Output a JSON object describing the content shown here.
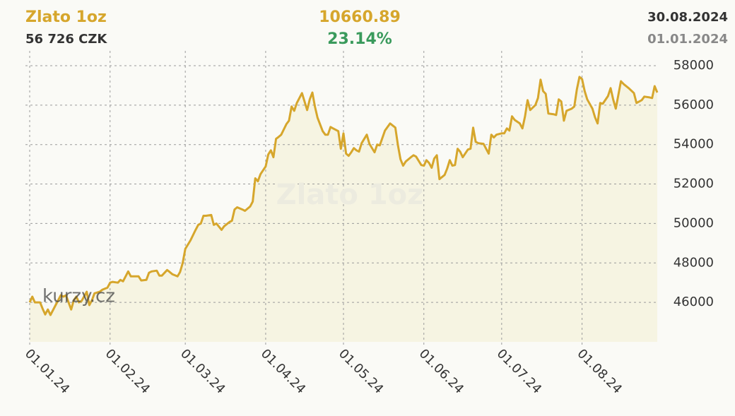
{
  "chart_data": {
    "type": "line",
    "title": "Zlato 1oz",
    "price": "56 726 CZK",
    "value": "10660.89",
    "change": "23.14%",
    "date_end": "30.08.2024",
    "date_start": "01.01.2024",
    "logo": "kurzy.cz",
    "x": [
      "2024-01-01",
      "2024-01-02",
      "2024-01-03",
      "2024-01-05",
      "2024-01-06",
      "2024-01-07",
      "2024-01-08",
      "2024-01-09",
      "2024-01-11",
      "2024-01-13",
      "2024-01-14",
      "2024-01-15",
      "2024-01-17",
      "2024-01-18",
      "2024-01-19",
      "2024-01-20",
      "2024-01-21",
      "2024-01-23",
      "2024-01-24",
      "2024-01-25",
      "2024-01-26",
      "2024-01-28",
      "2024-01-29",
      "2024-01-31",
      "2024-02-01",
      "2024-02-02",
      "2024-02-04",
      "2024-02-05",
      "2024-02-06",
      "2024-02-08",
      "2024-02-09",
      "2024-02-10",
      "2024-02-12",
      "2024-02-13",
      "2024-02-15",
      "2024-02-16",
      "2024-02-17",
      "2024-02-19",
      "2024-02-20",
      "2024-02-21",
      "2024-02-23",
      "2024-02-24",
      "2024-02-25",
      "2024-02-27",
      "2024-02-28",
      "2024-02-29",
      "2024-03-01",
      "2024-03-03",
      "2024-03-05",
      "2024-03-06",
      "2024-03-07",
      "2024-03-08",
      "2024-03-09",
      "2024-03-11",
      "2024-03-12",
      "2024-03-13",
      "2024-03-15",
      "2024-03-16",
      "2024-03-18",
      "2024-03-19",
      "2024-03-20",
      "2024-03-21",
      "2024-03-23",
      "2024-03-24",
      "2024-03-26",
      "2024-03-27",
      "2024-03-28",
      "2024-03-29",
      "2024-03-30",
      "2024-04-01",
      "2024-04-02",
      "2024-04-03",
      "2024-04-04",
      "2024-04-05",
      "2024-04-06",
      "2024-04-07",
      "2024-04-09",
      "2024-04-10",
      "2024-04-11",
      "2024-04-12",
      "2024-04-13",
      "2024-04-15",
      "2024-04-17",
      "2024-04-18",
      "2024-04-19",
      "2024-04-20",
      "2024-04-21",
      "2024-04-23",
      "2024-04-24",
      "2024-04-25",
      "2024-04-26",
      "2024-04-27",
      "2024-04-29",
      "2024-04-30",
      "2024-05-01",
      "2024-05-02",
      "2024-05-03",
      "2024-05-04",
      "2024-05-05",
      "2024-05-06",
      "2024-05-07",
      "2024-05-08",
      "2024-05-10",
      "2024-05-11",
      "2024-05-13",
      "2024-05-14",
      "2024-05-15",
      "2024-05-17",
      "2024-05-18",
      "2024-05-19",
      "2024-05-21",
      "2024-05-22",
      "2024-05-23",
      "2024-05-24",
      "2024-05-25",
      "2024-05-27",
      "2024-05-28",
      "2024-05-29",
      "2024-05-31",
      "2024-06-01",
      "2024-06-02",
      "2024-06-03",
      "2024-06-04",
      "2024-06-05",
      "2024-06-06",
      "2024-06-07",
      "2024-06-09",
      "2024-06-10",
      "2024-06-11",
      "2024-06-12",
      "2024-06-13",
      "2024-06-14",
      "2024-06-15",
      "2024-06-16",
      "2024-06-18",
      "2024-06-19",
      "2024-06-20",
      "2024-06-21",
      "2024-06-22",
      "2024-06-24",
      "2024-06-26",
      "2024-06-27",
      "2024-06-28",
      "2024-06-29",
      "2024-07-01",
      "2024-07-02",
      "2024-07-03",
      "2024-07-04",
      "2024-07-05",
      "2024-07-06",
      "2024-07-08",
      "2024-07-09",
      "2024-07-10",
      "2024-07-11",
      "2024-07-12",
      "2024-07-14",
      "2024-07-15",
      "2024-07-16",
      "2024-07-17",
      "2024-07-18",
      "2024-07-19",
      "2024-07-21",
      "2024-07-22",
      "2024-07-23",
      "2024-07-24",
      "2024-07-25",
      "2024-07-26",
      "2024-07-28",
      "2024-07-29",
      "2024-07-30",
      "2024-07-31",
      "2024-08-01",
      "2024-08-02",
      "2024-08-03",
      "2024-08-05",
      "2024-08-06",
      "2024-08-07",
      "2024-08-08",
      "2024-08-09",
      "2024-08-11",
      "2024-08-12",
      "2024-08-13",
      "2024-08-14",
      "2024-08-16",
      "2024-08-17",
      "2024-08-19",
      "2024-08-21",
      "2024-08-22",
      "2024-08-24",
      "2024-08-25",
      "2024-08-27",
      "2024-08-28",
      "2024-08-29",
      "2024-08-30"
    ],
    "values": [
      46000,
      46290,
      46000,
      46000,
      45680,
      45390,
      45640,
      45360,
      45860,
      46360,
      46290,
      46360,
      45640,
      46110,
      46290,
      46000,
      46070,
      46540,
      45860,
      46110,
      46460,
      46540,
      46640,
      46750,
      47000,
      47040,
      47000,
      47140,
      47070,
      47570,
      47320,
      47320,
      47320,
      47110,
      47140,
      47500,
      47570,
      47610,
      47360,
      47360,
      47640,
      47540,
      47430,
      47320,
      47540,
      48000,
      48710,
      49140,
      49680,
      49930,
      50000,
      50390,
      50390,
      50430,
      49930,
      50000,
      49680,
      49860,
      50070,
      50140,
      50710,
      50820,
      50710,
      50640,
      50860,
      51110,
      52290,
      52140,
      52500,
      52890,
      53500,
      53710,
      53360,
      54290,
      54390,
      54500,
      55040,
      55210,
      55930,
      55710,
      56110,
      56610,
      55750,
      56290,
      56640,
      55930,
      55360,
      54680,
      54500,
      54500,
      54890,
      54820,
      54680,
      53790,
      54570,
      53540,
      53430,
      53610,
      53820,
      53710,
      53640,
      54070,
      54500,
      54040,
      53610,
      54000,
      53960,
      54710,
      54890,
      55070,
      54860,
      53960,
      53250,
      52930,
      53140,
      53360,
      53460,
      53390,
      52960,
      52930,
      53210,
      53070,
      52820,
      53290,
      53460,
      52250,
      52460,
      52790,
      53210,
      52930,
      52960,
      53790,
      53640,
      53360,
      53750,
      53790,
      54860,
      54140,
      54070,
      54040,
      53540,
      54500,
      54360,
      54500,
      54570,
      54570,
      54820,
      54710,
      55430,
      55250,
      55070,
      54820,
      55430,
      56250,
      55750,
      56000,
      56360,
      57290,
      56710,
      56570,
      55570,
      55540,
      55500,
      56290,
      56180,
      55210,
      55710,
      55820,
      55930,
      56790,
      57430,
      57320,
      56710,
      56290,
      55820,
      55390,
      55070,
      56110,
      56070,
      56460,
      56860,
      56290,
      55820,
      57210,
      57070,
      56860,
      56610,
      56110,
      56250,
      56430,
      56390,
      56360,
      56960,
      56640
    ],
    "color": "#d6a62c",
    "fill": "#f6f4e2",
    "xlim": [
      "2024-01-01",
      "2024-08-30"
    ],
    "xticks": [
      {
        "value": "2024-01-01",
        "label": "01.01.24"
      },
      {
        "value": "2024-02-01",
        "label": "01.02.24"
      },
      {
        "value": "2024-03-01",
        "label": "01.03.24"
      },
      {
        "value": "2024-04-01",
        "label": "01.04.24"
      },
      {
        "value": "2024-05-01",
        "label": "01.05.24"
      },
      {
        "value": "2024-06-01",
        "label": "01.06.24"
      },
      {
        "value": "2024-07-01",
        "label": "01.07.24"
      },
      {
        "value": "2024-08-01",
        "label": "01.08.24"
      }
    ],
    "ylim": [
      44000,
      58500
    ],
    "yticks": [
      46000,
      48000,
      50000,
      52000,
      54000,
      56000,
      58000
    ],
    "grid": true
  }
}
